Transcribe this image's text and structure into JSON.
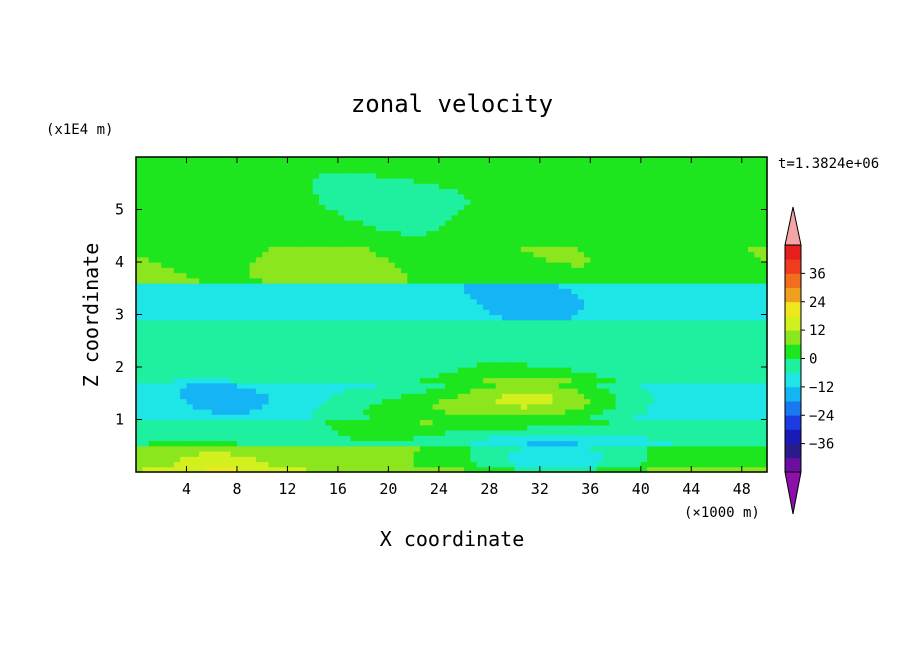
{
  "chart_data": {
    "type": "heatmap",
    "title": "zonal velocity",
    "xlabel": "X coordinate",
    "ylabel": "Z coordinate",
    "x_unit": "(×1000 m)",
    "y_unit": "(x1E4 m)",
    "time_label": "t=1.3824e+06",
    "xlim": [
      0,
      50
    ],
    "ylim": [
      0,
      6
    ],
    "x_ticks": [
      4,
      8,
      12,
      16,
      20,
      24,
      28,
      32,
      36,
      40,
      44,
      48
    ],
    "y_ticks": [
      1,
      2,
      3,
      4,
      5
    ],
    "colorbar": {
      "levels": [
        -42,
        -36,
        -30,
        -24,
        -18,
        -12,
        -6,
        0,
        6,
        12,
        18,
        24,
        30,
        36,
        42
      ],
      "colors": [
        "#6a0f9e",
        "#2a1a8a",
        "#1a1ab5",
        "#1a3ce0",
        "#1a78f0",
        "#15b4f5",
        "#1ee6e6",
        "#1ef0a0",
        "#1ee61e",
        "#8ce61e",
        "#d2f01e",
        "#f0e61e",
        "#f0a01e",
        "#f06e1e",
        "#f03c1e",
        "#e61e1e"
      ],
      "under_color": "#8b0fa8",
      "over_color": "#f4a4a4",
      "tick_labels": [
        "36",
        "24",
        "12",
        "0",
        "−12",
        "−24",
        "−36"
      ]
    },
    "field": {
      "note": "approximate zonal velocity field u(x, z), x in 1000 m, z in 1E4 m",
      "base_bands": [
        {
          "z": [
            0.0,
            0.12
          ],
          "value": 9
        },
        {
          "z": [
            0.12,
            0.45
          ],
          "value": 5
        },
        {
          "z": [
            0.45,
            1.0
          ],
          "value": -3
        },
        {
          "z": [
            1.0,
            1.7
          ],
          "value": -8
        },
        {
          "z": [
            1.7,
            2.3
          ],
          "value": -3
        },
        {
          "z": [
            2.3,
            2.9
          ],
          "value": -2
        },
        {
          "z": [
            2.9,
            3.6
          ],
          "value": -10
        },
        {
          "z": [
            3.6,
            4.3
          ],
          "value": 5
        },
        {
          "z": [
            4.3,
            6.0
          ],
          "value": 2
        }
      ],
      "features": [
        {
          "x": 8,
          "z": 0.15,
          "value": 14
        },
        {
          "x": 9,
          "z": 1.45,
          "value": -13
        },
        {
          "x": 32,
          "z": 1.4,
          "value": 10
        },
        {
          "x": 34,
          "z": 0.3,
          "value": -10
        },
        {
          "x": 23,
          "z": 1.2,
          "value": 4
        },
        {
          "x": 33,
          "z": 3.35,
          "value": -13
        },
        {
          "x": 12,
          "z": 3.8,
          "value": 8
        },
        {
          "x": 22,
          "z": 5.2,
          "value": -3
        }
      ]
    }
  }
}
